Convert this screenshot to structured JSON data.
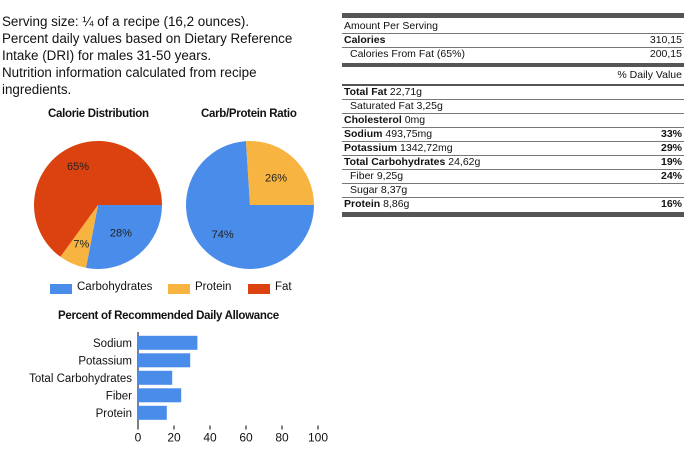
{
  "intro": {
    "lines": [
      "Serving size: ¼ of a recipe (16,2 ounces).",
      "Percent daily values based on Dietary Reference",
      "Intake (DRI) for males 31-50 years.",
      "Nutrition information calculated from recipe",
      "ingredients."
    ]
  },
  "colors": {
    "carbohydrates": "#4a8cea",
    "protein": "#f7b440",
    "fat": "#dc4210",
    "bar": "#4a8cea"
  },
  "legend": {
    "items": [
      "Carbohydrates",
      "Protein",
      "Fat"
    ]
  },
  "chart_data": [
    {
      "type": "pie",
      "title": "Calorie Distribution",
      "slices": [
        {
          "name": "Carbohydrates",
          "value": 28,
          "label": "28%"
        },
        {
          "name": "Protein",
          "value": 7,
          "label": "7%"
        },
        {
          "name": "Fat",
          "value": 65,
          "label": "65%"
        }
      ]
    },
    {
      "type": "pie",
      "title": "Carb/Protein Ratio",
      "slices": [
        {
          "name": "Carbohydrates",
          "value": 74,
          "label": "74%"
        },
        {
          "name": "Protein",
          "value": 26,
          "label": "26%"
        }
      ]
    },
    {
      "type": "bar",
      "orientation": "horizontal",
      "title": "Percent of Recommended Daily Allowance",
      "categories": [
        "Sodium",
        "Potassium",
        "Total Carbohydrates",
        "Fiber",
        "Protein"
      ],
      "values": [
        33,
        29,
        19,
        24,
        16
      ],
      "xlim": [
        0,
        100
      ],
      "xticks": [
        "0",
        "20",
        "40",
        "60",
        "80",
        "100"
      ]
    }
  ],
  "facts": {
    "amount_per_serving": "Amount Per Serving",
    "calories": {
      "label": "Calories",
      "value": "310,15"
    },
    "calories_fat": {
      "label": "Calories From Fat (65%)",
      "value": "200,15"
    },
    "daily_value_header": "% Daily Value",
    "total_fat": {
      "label": "Total Fat",
      "amount": "22,71g"
    },
    "saturated_fat": {
      "label": "Saturated Fat 3,25g"
    },
    "cholesterol": {
      "label": "Cholesterol",
      "amount": "0mg"
    },
    "sodium": {
      "label": "Sodium",
      "amount": "493,75mg",
      "dv": "33%"
    },
    "potassium": {
      "label": "Potassium",
      "amount": "1342,72mg",
      "dv": "29%"
    },
    "total_carbs": {
      "label": "Total Carbohydrates",
      "amount": "24,62g",
      "dv": "19%"
    },
    "fiber": {
      "label": "Fiber 9,25g",
      "dv": "24%"
    },
    "sugar": {
      "label": "Sugar 8,37g"
    },
    "protein": {
      "label": "Protein",
      "amount": "8,86g",
      "dv": "16%"
    }
  }
}
